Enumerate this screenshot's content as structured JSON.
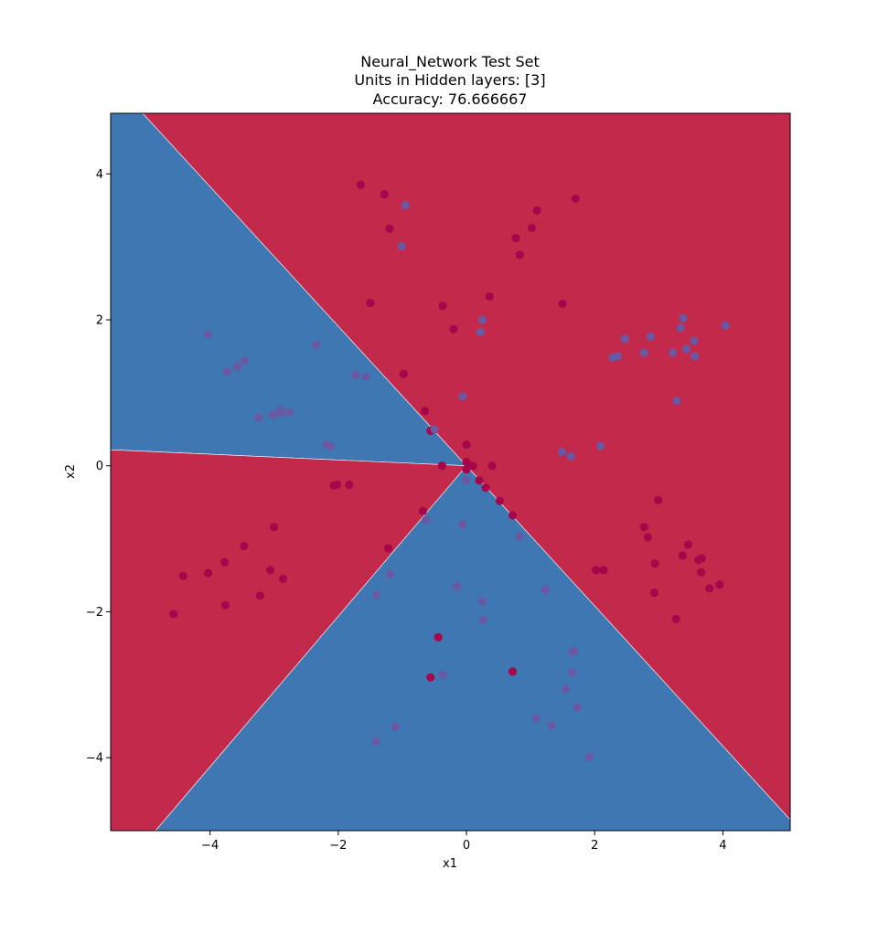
{
  "chart_data": {
    "type": "scatter",
    "title_lines": [
      "Neural_Network Test Set",
      "Units in Hidden layers: [3]",
      "Accuracy: 76.666667"
    ],
    "xlabel": "x1",
    "ylabel": "x2",
    "xlim": [
      -5.55,
      5.05
    ],
    "ylim": [
      -5.0,
      4.83
    ],
    "xticks": [
      -4,
      -2,
      0,
      2,
      4
    ],
    "yticks": [
      -4,
      -2,
      0,
      2,
      4
    ],
    "xtick_labels": [
      "−4",
      "−2",
      "0",
      "2",
      "4"
    ],
    "ytick_labels": [
      "−4",
      "−2",
      "0",
      "2",
      "4"
    ],
    "grid": false,
    "colors": {
      "region_red": "#c2294a",
      "region_blue": "#3f77b3",
      "point_red": "#a5074a",
      "point_blue": "#6a58a2",
      "axes": "#000000"
    },
    "decision_regions": [
      {
        "class": "blue",
        "polygon": [
          [
            -5.55,
            4.83
          ],
          [
            -5.05,
            4.83
          ],
          [
            0,
            0
          ],
          [
            -5.55,
            0.22
          ]
        ]
      },
      {
        "class": "red",
        "polygon": [
          [
            -5.05,
            4.83
          ],
          [
            5.05,
            4.83
          ],
          [
            5.05,
            -4.85
          ],
          [
            0,
            0
          ]
        ]
      },
      {
        "class": "blue",
        "polygon": [
          [
            0,
            0
          ],
          [
            5.05,
            -4.85
          ],
          [
            5.05,
            -5.0
          ],
          [
            -4.85,
            -5.0
          ]
        ]
      },
      {
        "class": "red",
        "polygon": [
          [
            -5.55,
            0.22
          ],
          [
            0,
            0
          ],
          [
            -4.85,
            -5.0
          ],
          [
            -5.55,
            -5.0
          ]
        ]
      }
    ],
    "series": [
      {
        "class": "red",
        "points": [
          [
            -1.65,
            3.85
          ],
          [
            -1.28,
            3.72
          ],
          [
            -1.2,
            3.25
          ],
          [
            -1.5,
            2.23
          ],
          [
            -0.37,
            2.19
          ],
          [
            -0.2,
            1.87
          ],
          [
            -0.98,
            1.26
          ],
          [
            -0.65,
            0.75
          ],
          [
            -0.56,
            0.48
          ],
          [
            -0.38,
            0.0
          ],
          [
            0.0,
            0.29
          ],
          [
            0.0,
            0.05
          ],
          [
            0.0,
            -0.05
          ],
          [
            0.1,
            0.0
          ],
          [
            0.2,
            -0.2
          ],
          [
            0.3,
            -0.3
          ],
          [
            0.4,
            0.0
          ],
          [
            0.52,
            -0.48
          ],
          [
            0.72,
            -0.68
          ],
          [
            1.1,
            3.5
          ],
          [
            1.7,
            3.66
          ],
          [
            1.02,
            3.26
          ],
          [
            0.77,
            3.12
          ],
          [
            0.83,
            2.89
          ],
          [
            0.36,
            2.32
          ],
          [
            1.5,
            2.22
          ],
          [
            -2.07,
            -0.27
          ],
          [
            -2.02,
            -0.26
          ],
          [
            -1.83,
            -0.26
          ],
          [
            -0.68,
            -0.62
          ],
          [
            -1.22,
            -1.13
          ],
          [
            -3.0,
            -0.84
          ],
          [
            -3.47,
            -1.1
          ],
          [
            -3.77,
            -1.32
          ],
          [
            -4.03,
            -1.47
          ],
          [
            -4.42,
            -1.51
          ],
          [
            -3.06,
            -1.43
          ],
          [
            -2.86,
            -1.55
          ],
          [
            -3.22,
            -1.78
          ],
          [
            -3.76,
            -1.91
          ],
          [
            -4.57,
            -2.03
          ],
          [
            -0.44,
            -2.35
          ],
          [
            -0.56,
            -2.9
          ],
          [
            0.72,
            -2.82
          ],
          [
            2.99,
            -0.47
          ],
          [
            2.77,
            -0.84
          ],
          [
            2.83,
            -0.98
          ],
          [
            3.46,
            -1.08
          ],
          [
            3.37,
            -1.23
          ],
          [
            3.67,
            -1.27
          ],
          [
            3.62,
            -1.29
          ],
          [
            2.94,
            -1.34
          ],
          [
            3.66,
            -1.46
          ],
          [
            2.02,
            -1.43
          ],
          [
            2.14,
            -1.43
          ],
          [
            3.95,
            -1.63
          ],
          [
            3.79,
            -1.68
          ],
          [
            2.93,
            -1.74
          ],
          [
            3.27,
            -2.1
          ]
        ]
      },
      {
        "class": "blue",
        "points": [
          [
            -0.95,
            3.57
          ],
          [
            -1.01,
            3.01
          ],
          [
            0.25,
            2.0
          ],
          [
            0.22,
            1.83
          ],
          [
            -0.06,
            0.95
          ],
          [
            -0.5,
            0.5
          ],
          [
            -4.03,
            1.8
          ],
          [
            -2.34,
            1.66
          ],
          [
            -3.46,
            1.44
          ],
          [
            -3.57,
            1.36
          ],
          [
            -3.73,
            1.29
          ],
          [
            -1.73,
            1.24
          ],
          [
            -1.57,
            1.22
          ],
          [
            -2.76,
            0.73
          ],
          [
            -2.9,
            0.76
          ],
          [
            -2.89,
            0.72
          ],
          [
            -3.02,
            0.7
          ],
          [
            -3.24,
            0.66
          ],
          [
            -2.18,
            0.29
          ],
          [
            -2.12,
            0.27
          ],
          [
            0.0,
            -0.2
          ],
          [
            -0.06,
            -0.8
          ],
          [
            -0.63,
            -0.74
          ],
          [
            0.83,
            -0.97
          ],
          [
            -1.19,
            -1.49
          ],
          [
            1.23,
            -1.7
          ],
          [
            -0.15,
            -1.65
          ],
          [
            -1.4,
            -1.77
          ],
          [
            0.25,
            -1.86
          ],
          [
            0.26,
            -2.11
          ],
          [
            1.65,
            -2.55
          ],
          [
            1.68,
            -2.54
          ],
          [
            1.65,
            -2.83
          ],
          [
            -0.37,
            -2.86
          ],
          [
            1.55,
            -3.06
          ],
          [
            1.73,
            -3.31
          ],
          [
            1.09,
            -3.46
          ],
          [
            1.33,
            -3.56
          ],
          [
            -1.11,
            -3.58
          ],
          [
            -1.41,
            -3.78
          ],
          [
            1.92,
            -3.99
          ],
          [
            3.38,
            2.02
          ],
          [
            4.04,
            1.92
          ],
          [
            3.34,
            1.89
          ],
          [
            2.87,
            1.77
          ],
          [
            2.47,
            1.74
          ],
          [
            3.55,
            1.71
          ],
          [
            2.77,
            1.55
          ],
          [
            3.22,
            1.55
          ],
          [
            3.43,
            1.6
          ],
          [
            2.36,
            1.5
          ],
          [
            2.28,
            1.48
          ],
          [
            3.56,
            1.5
          ],
          [
            3.28,
            0.89
          ],
          [
            2.09,
            0.27
          ],
          [
            1.49,
            0.19
          ],
          [
            1.63,
            0.13
          ]
        ]
      }
    ]
  }
}
